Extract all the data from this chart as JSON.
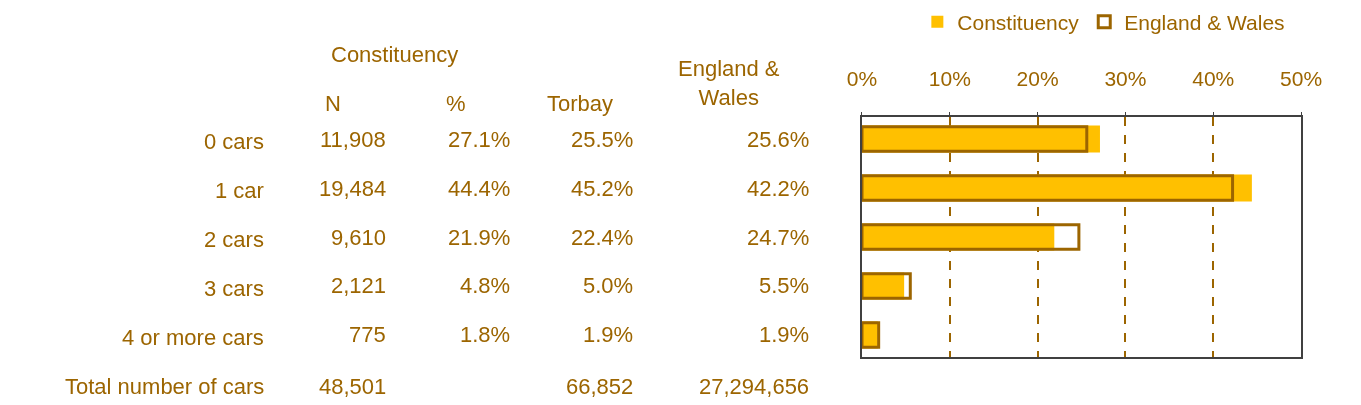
{
  "chart_data": {
    "type": "bar",
    "orientation": "horizontal",
    "categories": [
      "0 cars",
      "1 car",
      "2 cars",
      "3 cars",
      "4 or more cars"
    ],
    "series": [
      {
        "name": "Constituency",
        "color": "#ffc000",
        "values": [
          27.1,
          44.4,
          21.9,
          4.8,
          1.8
        ],
        "value_labels": [
          "27.1%",
          "44.4%",
          "21.9%",
          "4.8%",
          "1.8%"
        ]
      },
      {
        "name": "England & Wales",
        "color": "#9c6500",
        "values": [
          25.6,
          42.2,
          24.7,
          5.5,
          1.9
        ],
        "value_labels": [
          "25.6%",
          "42.2%",
          "24.7%",
          "5.5%",
          "1.9%"
        ]
      }
    ],
    "x2lim": [
      0,
      50
    ],
    "x2ticks": [
      {
        "value": 0,
        "label": "0%"
      },
      {
        "value": 10,
        "label": "10%"
      },
      {
        "value": 20,
        "label": "20%"
      },
      {
        "value": 30,
        "label": "30%"
      },
      {
        "value": 40,
        "label": "40%"
      },
      {
        "value": 50,
        "label": "50%"
      }
    ],
    "grid": "x",
    "legend": "top right",
    "annotations": [
      "Constituency",
      "N",
      "%",
      "Torbay",
      "England &\nWales",
      "11,908",
      "19,484",
      "9,610",
      "2,121",
      "775",
      "25.5%",
      "45.2%",
      "22.4%",
      "5.0%",
      "1.9%",
      "Total number of cars",
      "48,501",
      "66,852",
      "27,294,656"
    ]
  }
}
